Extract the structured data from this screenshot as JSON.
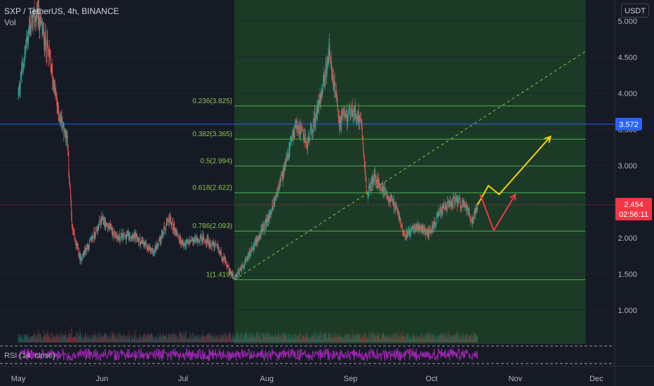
{
  "header": {
    "symbol_line": "SXP / TetherUS, 4h, BINANCE",
    "volume_label": "Vol",
    "currency_button": "USDT"
  },
  "rsi": {
    "label": "RSI (14, close)"
  },
  "colors": {
    "background": "#161a25",
    "up": "#26a69a",
    "down": "#ef5350",
    "fib_line": "#4caf50",
    "zone_fill": "#1b3b26",
    "h_line": "#2962ff",
    "price_line": "#f23645",
    "yellow_arrow": "#f5d10a",
    "red_arrow": "#f23645",
    "rsi_line": "#9c27b0"
  },
  "chart_data": {
    "type": "candlestick",
    "title": "SXP / TetherUS, 4h, BINANCE",
    "y_axis": {
      "ticks": [
        "5.000",
        "4.500",
        "4.000",
        "3.500",
        "3.000",
        "2.500",
        "2.000",
        "1.500",
        "1.000"
      ],
      "range": [
        0.6,
        5.4
      ]
    },
    "x_axis": {
      "ticks": [
        "May",
        "Jun",
        "Jul",
        "Aug",
        "Sep",
        "Oct",
        "Nov",
        "Dec"
      ]
    },
    "approx_price_path": [
      {
        "date": "2021-05-01",
        "price": 4.0
      },
      {
        "date": "2021-05-05",
        "price": 4.9
      },
      {
        "date": "2021-05-08",
        "price": 5.1
      },
      {
        "date": "2021-05-12",
        "price": 4.6
      },
      {
        "date": "2021-05-16",
        "price": 3.7
      },
      {
        "date": "2021-05-19",
        "price": 3.4
      },
      {
        "date": "2021-05-21",
        "price": 2.1
      },
      {
        "date": "2021-05-24",
        "price": 1.7
      },
      {
        "date": "2021-05-27",
        "price": 1.9
      },
      {
        "date": "2021-06-01",
        "price": 2.25
      },
      {
        "date": "2021-06-07",
        "price": 2.0
      },
      {
        "date": "2021-06-12",
        "price": 2.05
      },
      {
        "date": "2021-06-20",
        "price": 1.8
      },
      {
        "date": "2021-06-26",
        "price": 2.25
      },
      {
        "date": "2021-07-01",
        "price": 1.9
      },
      {
        "date": "2021-07-08",
        "price": 2.0
      },
      {
        "date": "2021-07-14",
        "price": 1.85
      },
      {
        "date": "2021-07-20",
        "price": 1.42
      },
      {
        "date": "2021-07-26",
        "price": 1.8
      },
      {
        "date": "2021-08-02",
        "price": 2.3
      },
      {
        "date": "2021-08-08",
        "price": 3.0
      },
      {
        "date": "2021-08-12",
        "price": 3.6
      },
      {
        "date": "2021-08-16",
        "price": 3.3
      },
      {
        "date": "2021-08-20",
        "price": 3.8
      },
      {
        "date": "2021-08-24",
        "price": 4.55
      },
      {
        "date": "2021-08-28",
        "price": 3.6
      },
      {
        "date": "2021-09-01",
        "price": 3.75
      },
      {
        "date": "2021-09-05",
        "price": 3.65
      },
      {
        "date": "2021-09-07",
        "price": 2.6
      },
      {
        "date": "2021-09-10",
        "price": 2.85
      },
      {
        "date": "2021-09-14",
        "price": 2.6
      },
      {
        "date": "2021-09-18",
        "price": 2.4
      },
      {
        "date": "2021-09-21",
        "price": 2.05
      },
      {
        "date": "2021-09-26",
        "price": 2.15
      },
      {
        "date": "2021-09-30",
        "price": 2.05
      },
      {
        "date": "2021-10-04",
        "price": 2.35
      },
      {
        "date": "2021-10-09",
        "price": 2.5
      },
      {
        "date": "2021-10-13",
        "price": 2.45
      },
      {
        "date": "2021-10-16",
        "price": 2.25
      },
      {
        "date": "2021-10-18",
        "price": 2.454
      }
    ],
    "fibonacci": [
      {
        "label": "0.236(3.825)",
        "value": 3.825
      },
      {
        "label": "0.382(3.365)",
        "value": 3.365
      },
      {
        "label": "0.5(2.994)",
        "value": 2.994
      },
      {
        "label": "0.618(2.622)",
        "value": 2.622
      },
      {
        "label": "0.786(2.093)",
        "value": 2.093
      },
      {
        "label": "1(1.419)",
        "value": 1.419
      }
    ],
    "fib_zone": {
      "from": "2021-07-20",
      "to": "2021-11-27"
    },
    "horizontal_line": {
      "value": 3.572,
      "label": "3.572"
    },
    "trend_line": {
      "from": {
        "date": "2021-07-20",
        "price": 1.419
      },
      "to": {
        "date": "2021-11-27",
        "price": 4.58
      }
    },
    "current_price": {
      "value": 2.454,
      "label": "2.454",
      "countdown": "02:56:11"
    },
    "projection_yellow": [
      {
        "date": "2021-10-18",
        "price": 2.454
      },
      {
        "date": "2021-10-22",
        "price": 2.72
      },
      {
        "date": "2021-10-26",
        "price": 2.6
      },
      {
        "date": "2021-11-14",
        "price": 3.4
      }
    ],
    "projection_red": [
      {
        "date": "2021-10-19",
        "price": 2.6
      },
      {
        "date": "2021-10-24",
        "price": 2.1
      },
      {
        "date": "2021-11-01",
        "price": 2.6
      }
    ],
    "rsi_band": {
      "upper": 70,
      "lower": 30
    }
  }
}
